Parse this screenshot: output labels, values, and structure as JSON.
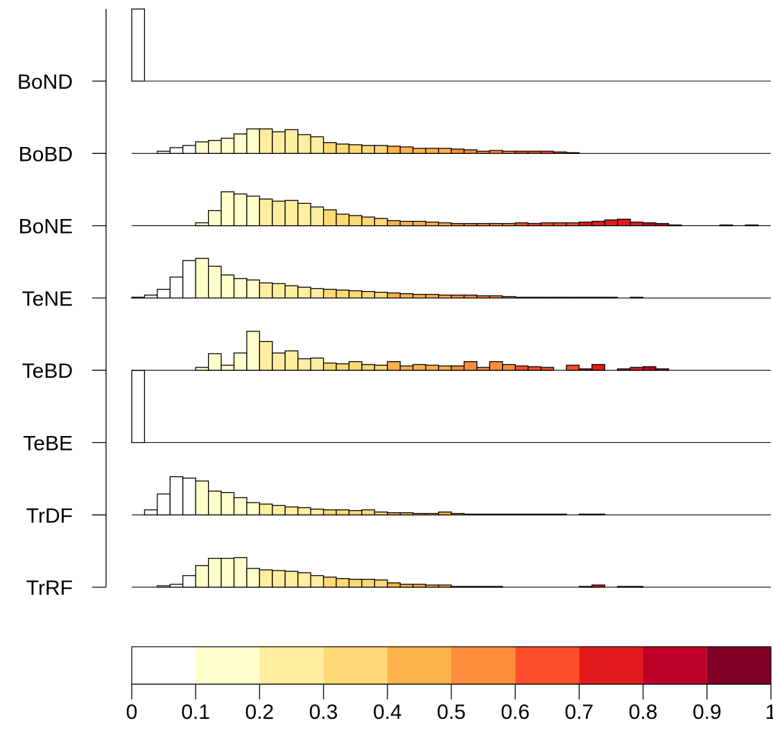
{
  "chart_data": {
    "type": "histogram",
    "x_range": [
      0,
      1
    ],
    "bin_width": 0.02,
    "colorbar": {
      "breaks": [
        0,
        0.1,
        0.2,
        0.3,
        0.4,
        0.5,
        0.6,
        0.7,
        0.8,
        0.9,
        1
      ],
      "tick_labels": [
        "0",
        "0.1",
        "0.2",
        "0.3",
        "0.4",
        "0.5",
        "0.6",
        "0.7",
        "0.8",
        "0.9",
        "1"
      ],
      "colors": [
        "#ffffff",
        "#ffffcc",
        "#ffeda0",
        "#fed976",
        "#feb24c",
        "#fd8d3c",
        "#fc4e2a",
        "#e31a1c",
        "#bd0026",
        "#800026"
      ]
    },
    "series": [
      {
        "name": "BoND",
        "values": [
          1.0
        ]
      },
      {
        "name": "BoBD",
        "values": [
          0.0,
          0.0,
          0.03,
          0.08,
          0.11,
          0.16,
          0.18,
          0.21,
          0.27,
          0.34,
          0.34,
          0.3,
          0.33,
          0.26,
          0.23,
          0.15,
          0.13,
          0.12,
          0.11,
          0.11,
          0.1,
          0.09,
          0.07,
          0.07,
          0.07,
          0.06,
          0.05,
          0.03,
          0.04,
          0.03,
          0.03,
          0.03,
          0.03,
          0.02,
          0.01,
          0.0
        ]
      },
      {
        "name": "BoNE",
        "values": [
          0.0,
          0.0,
          0.0,
          0.0,
          0.0,
          0.04,
          0.21,
          0.47,
          0.44,
          0.41,
          0.37,
          0.34,
          0.35,
          0.31,
          0.26,
          0.22,
          0.16,
          0.14,
          0.12,
          0.1,
          0.07,
          0.06,
          0.06,
          0.05,
          0.04,
          0.03,
          0.03,
          0.03,
          0.03,
          0.03,
          0.04,
          0.03,
          0.04,
          0.04,
          0.04,
          0.05,
          0.06,
          0.08,
          0.09,
          0.05,
          0.04,
          0.03,
          0.01,
          0.0,
          0.0,
          0.0,
          0.01,
          0.0,
          0.01
        ]
      },
      {
        "name": "TeNE",
        "values": [
          0.01,
          0.04,
          0.12,
          0.29,
          0.52,
          0.55,
          0.44,
          0.32,
          0.27,
          0.25,
          0.21,
          0.2,
          0.17,
          0.15,
          0.13,
          0.12,
          0.11,
          0.1,
          0.09,
          0.08,
          0.07,
          0.06,
          0.05,
          0.05,
          0.04,
          0.04,
          0.04,
          0.03,
          0.03,
          0.02,
          0.01,
          0.01,
          0.01,
          0.01,
          0.01,
          0.01,
          0.01,
          0.01,
          0.0,
          0.01
        ]
      },
      {
        "name": "TeBD",
        "values": [
          0.0,
          0.0,
          0.0,
          0.0,
          0.0,
          0.04,
          0.23,
          0.07,
          0.24,
          0.54,
          0.4,
          0.24,
          0.27,
          0.16,
          0.17,
          0.1,
          0.09,
          0.12,
          0.08,
          0.07,
          0.12,
          0.06,
          0.08,
          0.07,
          0.06,
          0.06,
          0.12,
          0.04,
          0.12,
          0.08,
          0.06,
          0.05,
          0.04,
          0.0,
          0.07,
          0.02,
          0.08,
          0.0,
          0.02,
          0.04,
          0.05,
          0.02
        ]
      },
      {
        "name": "TeBE",
        "values": [
          1.0
        ]
      },
      {
        "name": "TrDF",
        "values": [
          0.0,
          0.07,
          0.29,
          0.53,
          0.51,
          0.47,
          0.33,
          0.31,
          0.24,
          0.17,
          0.15,
          0.13,
          0.11,
          0.1,
          0.08,
          0.07,
          0.07,
          0.06,
          0.07,
          0.04,
          0.03,
          0.03,
          0.02,
          0.02,
          0.04,
          0.02,
          0.01,
          0.01,
          0.01,
          0.01,
          0.01,
          0.01,
          0.01,
          0.01,
          0.0,
          0.01,
          0.01
        ]
      },
      {
        "name": "TrRF",
        "values": [
          0.0,
          0.0,
          0.02,
          0.04,
          0.16,
          0.3,
          0.4,
          0.4,
          0.41,
          0.26,
          0.24,
          0.23,
          0.22,
          0.2,
          0.16,
          0.14,
          0.12,
          0.11,
          0.11,
          0.1,
          0.06,
          0.04,
          0.04,
          0.03,
          0.03,
          0.01,
          0.01,
          0.01,
          0.01,
          0.0,
          0.0,
          0.0,
          0.0,
          0.0,
          0.0,
          0.01,
          0.03,
          0.0,
          0.01,
          0.01,
          0.0,
          0.0,
          0.0,
          0.0,
          0.0,
          0.0,
          0.0,
          0.0
        ]
      }
    ]
  }
}
